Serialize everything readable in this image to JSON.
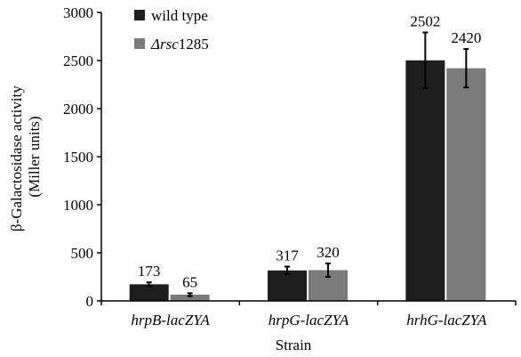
{
  "chart_data": {
    "type": "bar",
    "title": "",
    "xlabel": "Strain",
    "ylabel_line1": "β-Galactosidase activity",
    "ylabel_line2": "(Miller units)",
    "ylim": [
      0,
      3000
    ],
    "yticks": [
      0,
      500,
      1000,
      1500,
      2000,
      2500,
      3000
    ],
    "ytick_labels": [
      "0",
      "500",
      "1000",
      "1500",
      "2000",
      "2500",
      "3000"
    ],
    "categories": [
      "hrpB-lacZYA",
      "hrpG-lacZYA",
      "hrhG-lacZYA"
    ],
    "legend_position": "top-left",
    "grid": false,
    "series": [
      {
        "name": "wild type",
        "color": "#1e1e1e",
        "values": [
          173,
          317,
          2502
        ],
        "errors": [
          20,
          40,
          290
        ],
        "labels": [
          "173",
          "317",
          "2502"
        ]
      },
      {
        "name": "Δrsc1285",
        "name_prefix": "Δ",
        "name_italic": "rsc",
        "name_suffix": "1285",
        "color": "#7a7a7a",
        "values": [
          65,
          320,
          2420
        ],
        "errors": [
          15,
          70,
          200
        ],
        "labels": [
          "65",
          "320",
          "2420"
        ]
      }
    ]
  }
}
